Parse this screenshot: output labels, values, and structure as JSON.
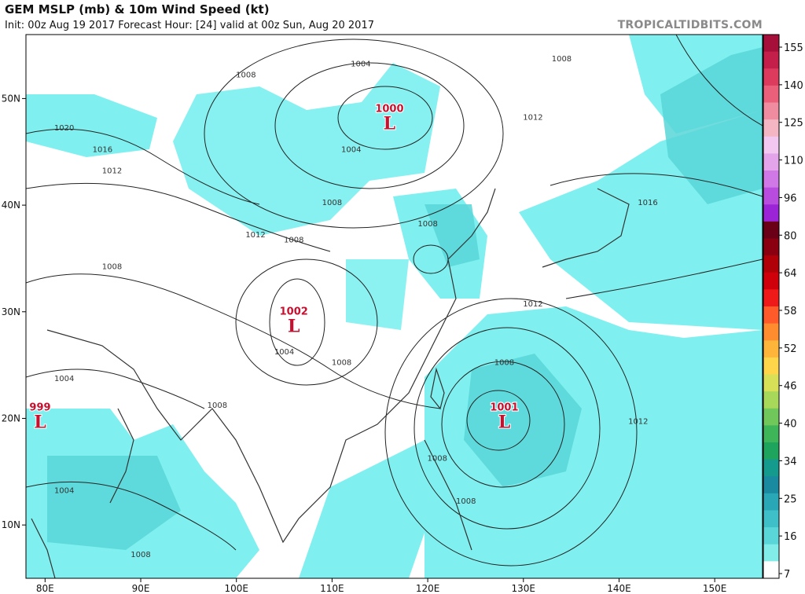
{
  "header": {
    "title": "GEM MSLP (mb) & 10m Wind Speed (kt)",
    "subtitle": "Init: 00z Aug 19 2017   Forecast Hour: [24]   valid at 00z Sun, Aug 20 2017",
    "brand": "TROPICALTIDBITS.COM"
  },
  "map": {
    "lon_range": [
      78,
      155
    ],
    "lat_range": [
      5,
      56
    ],
    "x_ticks": [
      "80E",
      "90E",
      "100E",
      "110E",
      "120E",
      "130E",
      "140E",
      "150E"
    ],
    "x_tick_values": [
      80,
      90,
      100,
      110,
      120,
      130,
      140,
      150
    ],
    "y_ticks": [
      "50N",
      "40N",
      "30N",
      "20N",
      "10N"
    ],
    "y_tick_values": [
      50,
      40,
      30,
      20,
      10
    ],
    "colors": {
      "wind_light": "#7ff0ef",
      "wind_mid": "#58d6d8",
      "land_border": "#333333",
      "isobar": "#222222",
      "low": "#c8102e"
    },
    "lows": [
      {
        "value": "1000",
        "letter": "L",
        "lon": 116,
        "lat": 48
      },
      {
        "value": "1002",
        "letter": "L",
        "lon": 106,
        "lat": 29
      },
      {
        "value": "1001",
        "letter": "L",
        "lon": 128,
        "lat": 20
      },
      {
        "value": "999",
        "letter": "L",
        "lon": 79,
        "lat": 20
      }
    ],
    "isobar_labels": [
      {
        "text": "1004",
        "lon": 113,
        "lat": 53
      },
      {
        "text": "1008",
        "lon": 101,
        "lat": 52
      },
      {
        "text": "1008",
        "lon": 134,
        "lat": 53.5
      },
      {
        "text": "1012",
        "lon": 131,
        "lat": 48
      },
      {
        "text": "1020",
        "lon": 82,
        "lat": 47
      },
      {
        "text": "1016",
        "lon": 86,
        "lat": 45
      },
      {
        "text": "1012",
        "lon": 87,
        "lat": 43
      },
      {
        "text": "1004",
        "lon": 112,
        "lat": 45
      },
      {
        "text": "1008",
        "lon": 110,
        "lat": 40
      },
      {
        "text": "1012",
        "lon": 102,
        "lat": 37
      },
      {
        "text": "1008",
        "lon": 106,
        "lat": 36.5
      },
      {
        "text": "1008",
        "lon": 120,
        "lat": 38
      },
      {
        "text": "1008",
        "lon": 87,
        "lat": 34
      },
      {
        "text": "1016",
        "lon": 143,
        "lat": 40
      },
      {
        "text": "1012",
        "lon": 131,
        "lat": 30.5
      },
      {
        "text": "1004",
        "lon": 105,
        "lat": 26
      },
      {
        "text": "1008",
        "lon": 111,
        "lat": 25
      },
      {
        "text": "1008",
        "lon": 128,
        "lat": 25
      },
      {
        "text": "1004",
        "lon": 82,
        "lat": 23.5
      },
      {
        "text": "1008",
        "lon": 98,
        "lat": 21
      },
      {
        "text": "1012",
        "lon": 142,
        "lat": 19.5
      },
      {
        "text": "1008",
        "lon": 121,
        "lat": 16
      },
      {
        "text": "1004",
        "lon": 82,
        "lat": 13
      },
      {
        "text": "1008",
        "lon": 124,
        "lat": 12
      },
      {
        "text": "1008",
        "lon": 90,
        "lat": 7
      }
    ]
  },
  "colorbar": {
    "labels": [
      "155",
      "140",
      "125",
      "110",
      "96",
      "80",
      "64",
      "58",
      "52",
      "46",
      "40",
      "34",
      "25",
      "16",
      "7"
    ],
    "colors": [
      "#a50f3a",
      "#c41e4a",
      "#dc3b5e",
      "#ea607a",
      "#f08ca0",
      "#f5b6c4",
      "#f3c8f0",
      "#e3a4ea",
      "#cf78e6",
      "#b74cdf",
      "#9a24d6",
      "#6a0018",
      "#8a0010",
      "#b00008",
      "#d0000b",
      "#ee1a1a",
      "#ff5a2a",
      "#ff8c2e",
      "#ffb43a",
      "#ffd54a",
      "#d8e058",
      "#a8d85a",
      "#70c85a",
      "#3fb55a",
      "#1ea45c",
      "#149b8e",
      "#1a8aa0",
      "#2aa7b6",
      "#3fc0c8",
      "#5bd6d8",
      "#82ece9",
      "#ffffff"
    ]
  }
}
